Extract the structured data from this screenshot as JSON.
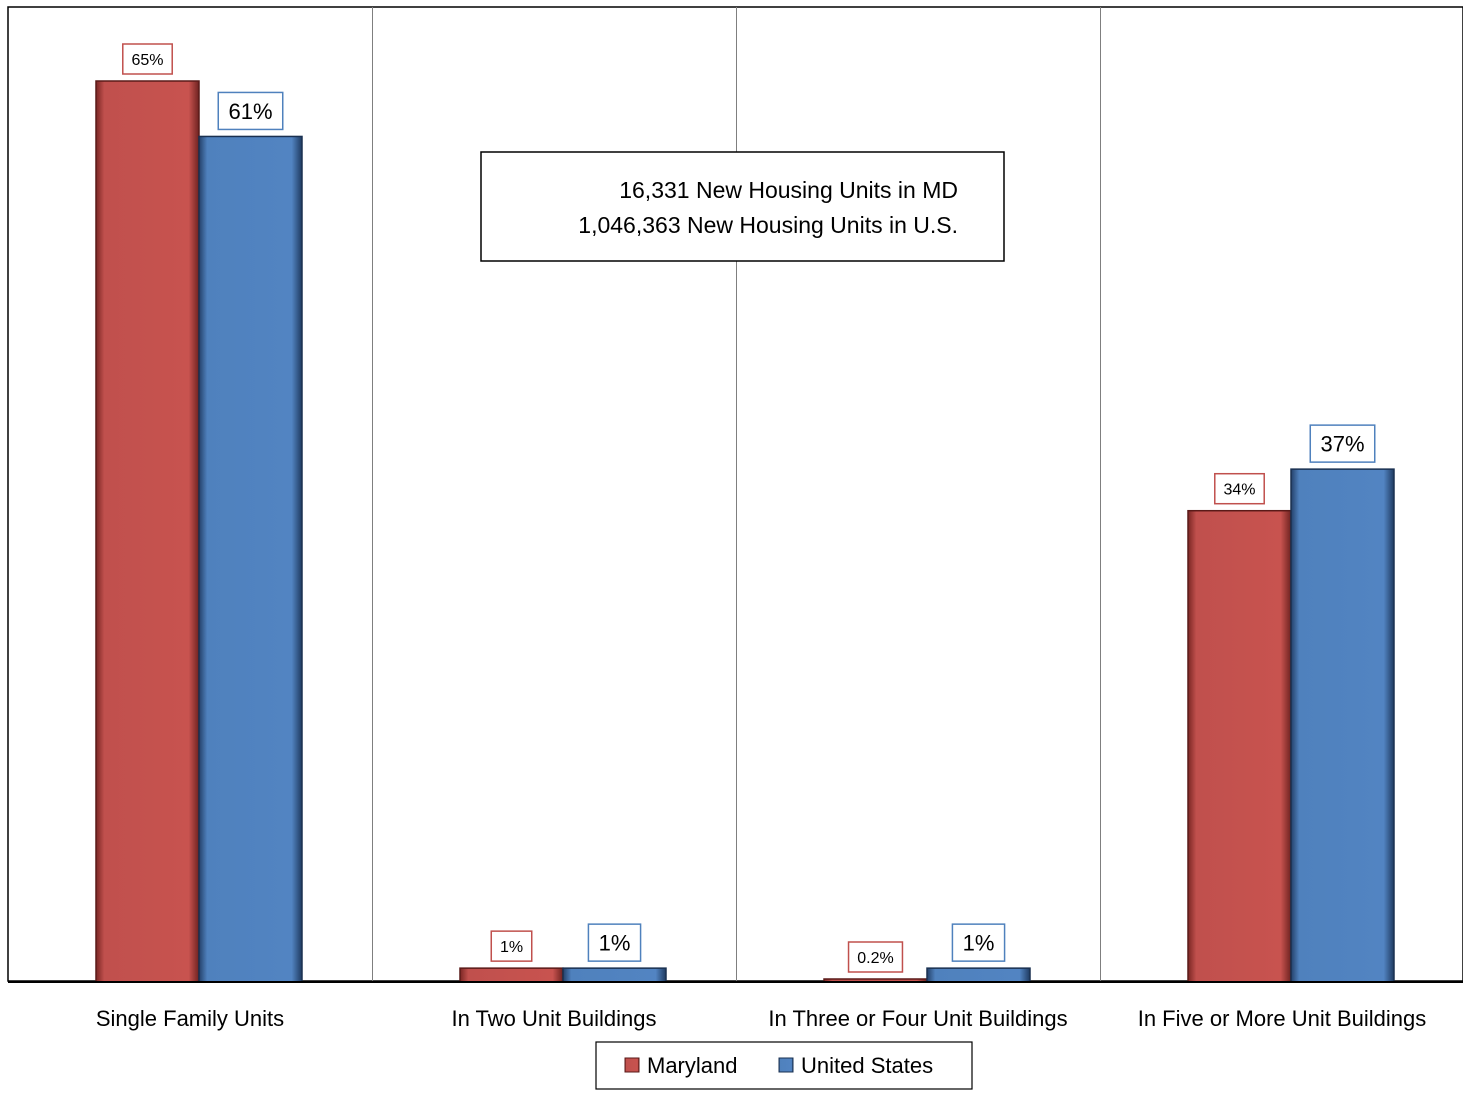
{
  "chart_data": {
    "type": "bar",
    "categories": [
      "Single Family Units",
      "In Two Unit Buildings",
      "In Three or Four Unit Buildings",
      "In Five or More Unit Buildings"
    ],
    "series": [
      {
        "name": "Maryland",
        "values": [
          65,
          1,
          0.2,
          34
        ],
        "labels": [
          "65%",
          "1%",
          "0.2%",
          "34%"
        ],
        "color": "#c0504d"
      },
      {
        "name": "United States",
        "values": [
          61,
          1,
          1,
          37
        ],
        "labels": [
          "61%",
          "1%",
          "1%",
          "37%"
        ],
        "color": "#4f81bd"
      }
    ],
    "ylim": [
      0,
      65
    ],
    "annotation": [
      "16,331 New Housing Units in MD",
      "1,046,363 New Housing Units in U.S."
    ],
    "legend": {
      "position": "bottom"
    },
    "grid": "vertical category separators"
  }
}
